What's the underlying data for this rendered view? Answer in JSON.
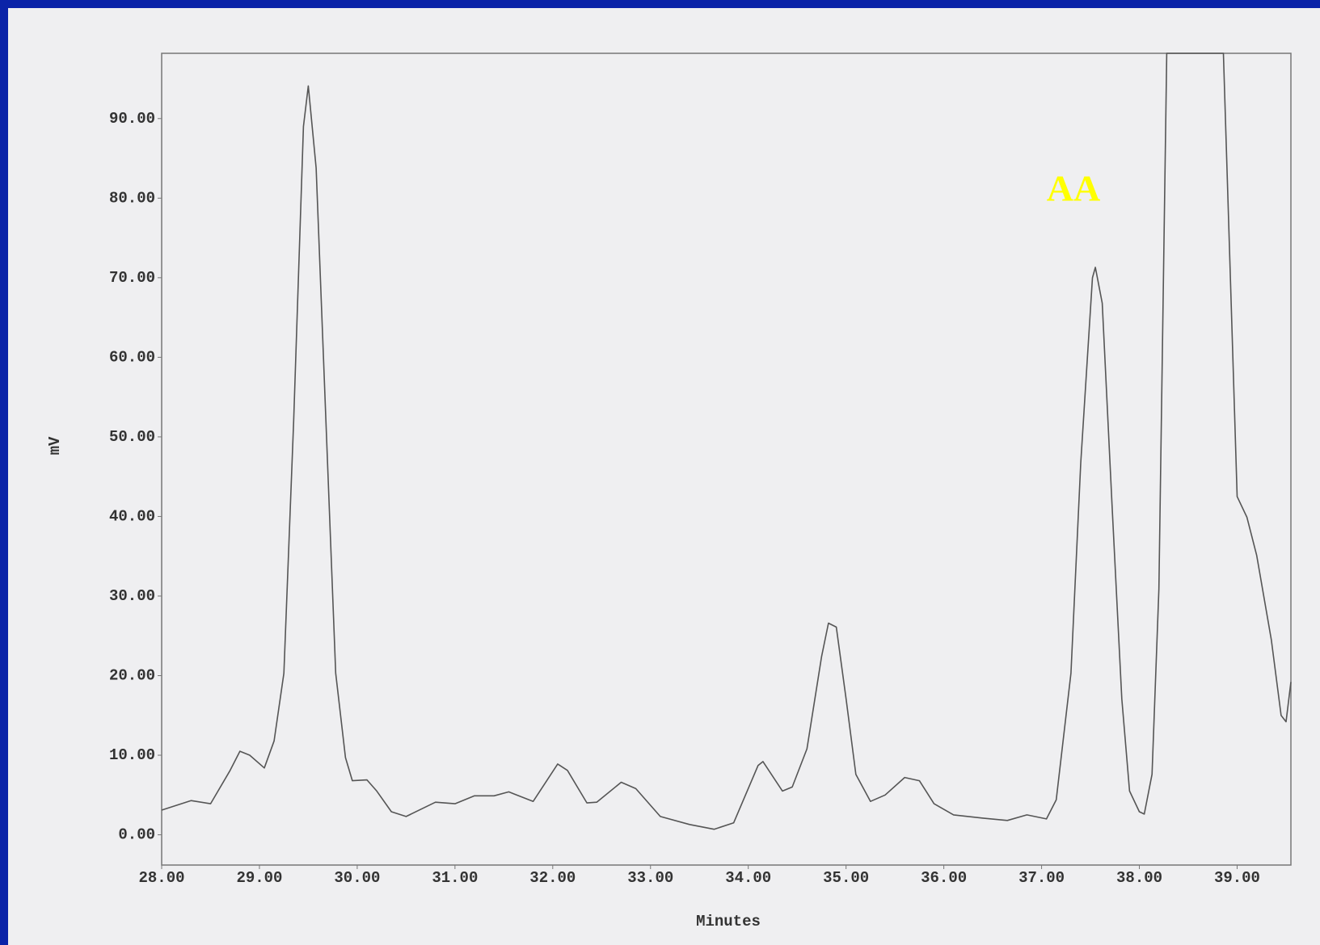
{
  "chart_data": {
    "type": "line",
    "xlabel": "Minutes",
    "ylabel": "mV",
    "annotation": "AA",
    "x": [
      28.0,
      28.3,
      28.5,
      28.7,
      28.8,
      28.9,
      29.05,
      29.15,
      29.25,
      29.35,
      29.45,
      29.5,
      29.58,
      29.68,
      29.78,
      29.88,
      29.95,
      30.1,
      30.2,
      30.35,
      30.5,
      30.8,
      31.0,
      31.2,
      31.4,
      31.55,
      31.8,
      32.05,
      32.15,
      32.35,
      32.45,
      32.7,
      32.85,
      33.1,
      33.4,
      33.65,
      33.85,
      34.1,
      34.15,
      34.35,
      34.45,
      34.6,
      34.75,
      34.82,
      34.9,
      35.0,
      35.1,
      35.25,
      35.4,
      35.6,
      35.75,
      35.9,
      36.1,
      36.4,
      36.65,
      36.85,
      37.05,
      37.15,
      37.3,
      37.4,
      37.52,
      37.55,
      37.62,
      37.72,
      37.82,
      37.9,
      38.0,
      38.05,
      38.13,
      38.2,
      38.28,
      38.86,
      38.95,
      39.0,
      39.1,
      39.2,
      39.35,
      39.45,
      39.5,
      39.55
    ],
    "values": [
      3.1,
      4.3,
      3.9,
      8.1,
      10.5,
      10.0,
      8.4,
      11.8,
      20.3,
      52,
      89,
      94.1,
      83.8,
      52,
      20.3,
      9.7,
      6.8,
      6.9,
      5.5,
      2.9,
      2.3,
      4.1,
      3.9,
      4.9,
      4.9,
      5.4,
      4.2,
      8.9,
      8.1,
      4.0,
      4.1,
      6.6,
      5.8,
      2.3,
      1.3,
      0.7,
      1.5,
      8.7,
      9.2,
      5.5,
      6.0,
      10.8,
      22.4,
      26.6,
      26.1,
      17.1,
      7.6,
      4.2,
      5.0,
      7.2,
      6.8,
      3.9,
      2.5,
      2.1,
      1.8,
      2.5,
      2.0,
      4.4,
      20.3,
      46.7,
      70,
      71.3,
      66.8,
      41.5,
      17.1,
      5.5,
      2.9,
      2.6,
      7.6,
      30.9,
      98.2,
      98.2,
      62.6,
      42.5,
      39.9,
      35.1,
      24.5,
      15.0,
      14.2,
      19.2
    ],
    "color": "#555555",
    "xlim": [
      28,
      39.55
    ],
    "ylim": [
      -3.8,
      98.2
    ],
    "xticks": [
      {
        "value": 28,
        "label": "28.00"
      },
      {
        "value": 29,
        "label": "29.00"
      },
      {
        "value": 30,
        "label": "30.00"
      },
      {
        "value": 31,
        "label": "31.00"
      },
      {
        "value": 32,
        "label": "32.00"
      },
      {
        "value": 33,
        "label": "33.00"
      },
      {
        "value": 34,
        "label": "34.00"
      },
      {
        "value": 35,
        "label": "35.00"
      },
      {
        "value": 36,
        "label": "36.00"
      },
      {
        "value": 37,
        "label": "37.00"
      },
      {
        "value": 38,
        "label": "38.00"
      },
      {
        "value": 39,
        "label": "39.00"
      }
    ],
    "yticks": [
      {
        "value": 0,
        "label": "0.00"
      },
      {
        "value": 10,
        "label": "10.00"
      },
      {
        "value": 20,
        "label": "20.00"
      },
      {
        "value": 30,
        "label": "30.00"
      },
      {
        "value": 40,
        "label": "40.00"
      },
      {
        "value": 50,
        "label": "50.00"
      },
      {
        "value": 60,
        "label": "60.00"
      },
      {
        "value": 70,
        "label": "70.00"
      },
      {
        "value": 80,
        "label": "80.00"
      },
      {
        "value": 90,
        "label": "90.00"
      }
    ],
    "grid": false
  }
}
